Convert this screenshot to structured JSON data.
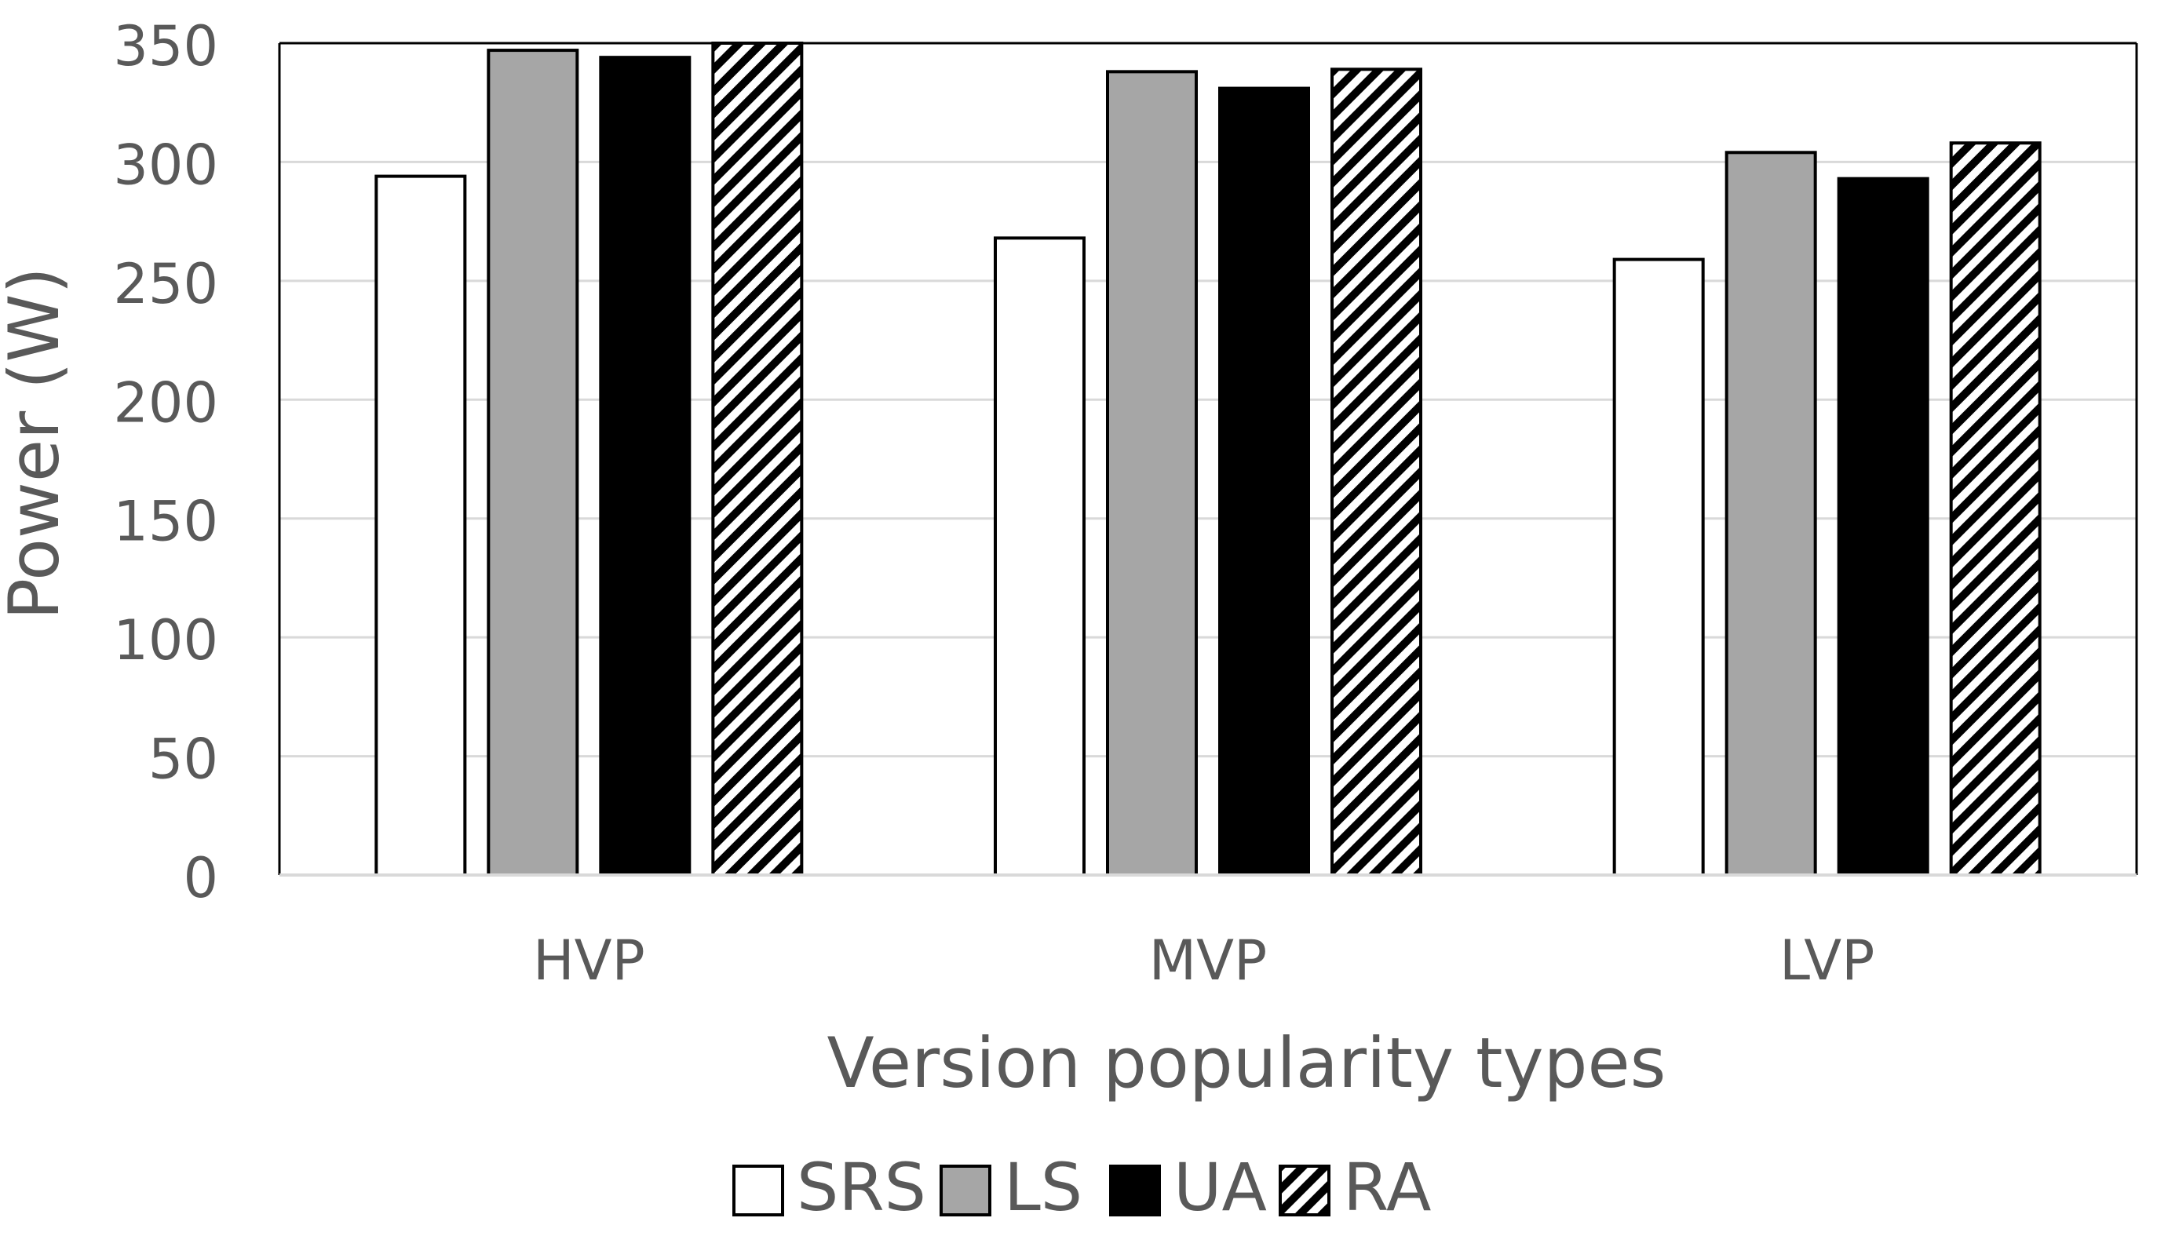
{
  "chart_data": {
    "type": "bar",
    "title": "",
    "xlabel": "Version popularity types",
    "ylabel": "Power (W)",
    "ylim": [
      0,
      350
    ],
    "yticks": [
      0,
      50,
      100,
      150,
      200,
      250,
      300,
      350
    ],
    "grid": true,
    "legend_position": "bottom",
    "categories": [
      "HVP",
      "MVP",
      "LVP"
    ],
    "series": [
      {
        "name": "SRS",
        "fill": "#ffffff",
        "pattern": "none",
        "values": [
          294,
          268,
          259
        ]
      },
      {
        "name": "LS",
        "fill": "#a6a6a6",
        "pattern": "none",
        "values": [
          347,
          338,
          304
        ]
      },
      {
        "name": "UA",
        "fill": "#000000",
        "pattern": "none",
        "values": [
          344,
          331,
          293
        ]
      },
      {
        "name": "RA",
        "fill": "#ffffff",
        "pattern": "diagonal-stripes",
        "values": [
          350,
          339,
          308
        ]
      }
    ]
  },
  "colors": {
    "axis_text": "#595959",
    "gridline": "#d9d9d9",
    "plot_border": "#000000",
    "bar_outline": "#000000"
  }
}
